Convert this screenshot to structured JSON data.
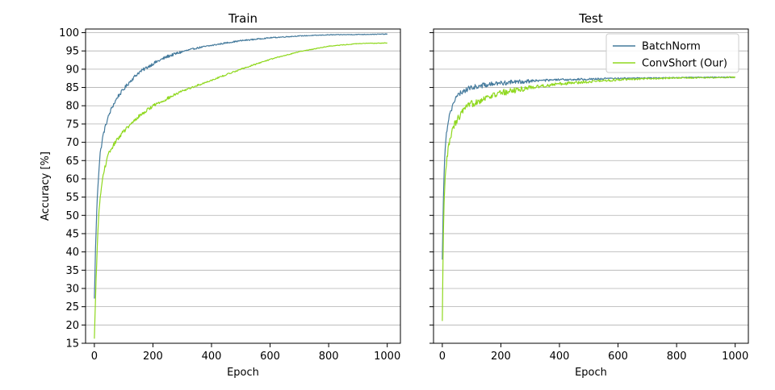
{
  "chart_data": [
    {
      "type": "line",
      "title": "Train",
      "xlabel": "Epoch",
      "ylabel": "Accuracy [%]",
      "xlim": [
        -30,
        1045
      ],
      "ylim": [
        15,
        101
      ],
      "xticks": [
        "0",
        "200",
        "400",
        "600",
        "800",
        "1000"
      ],
      "yticks": [
        "15",
        "20",
        "25",
        "30",
        "35",
        "40",
        "45",
        "50",
        "55",
        "60",
        "65",
        "70",
        "75",
        "80",
        "85",
        "90",
        "95",
        "100"
      ],
      "grid": "horizontal",
      "legend": "none",
      "series": [
        {
          "name": "BatchNorm",
          "color": "#447a9c",
          "x": [
            0,
            5,
            10,
            15,
            20,
            30,
            40,
            50,
            60,
            80,
            100,
            120,
            150,
            200,
            250,
            300,
            350,
            400,
            450,
            500,
            600,
            700,
            800,
            900,
            1000
          ],
          "y": [
            27,
            44,
            55,
            62,
            67,
            72,
            75,
            77.5,
            79.5,
            82.5,
            84.5,
            86.5,
            89,
            91.5,
            93.5,
            94.8,
            95.8,
            96.5,
            97.2,
            97.8,
            98.6,
            99.1,
            99.4,
            99.5,
            99.6
          ]
        },
        {
          "name": "ConvShort (Our)",
          "color": "#8fd81e",
          "x": [
            0,
            5,
            10,
            15,
            20,
            30,
            40,
            50,
            60,
            80,
            100,
            120,
            150,
            200,
            250,
            300,
            350,
            400,
            450,
            500,
            600,
            700,
            800,
            900,
            1000
          ],
          "y": [
            16,
            30,
            42,
            50,
            55,
            61,
            64.5,
            67,
            68.5,
            71,
            73,
            74.5,
            77,
            80,
            82,
            84,
            85.5,
            87,
            88.5,
            90,
            92.7,
            94.8,
            96.3,
            97,
            97.2
          ]
        }
      ]
    },
    {
      "type": "line",
      "title": "Test",
      "xlabel": "Epoch",
      "ylabel": "",
      "xlim": [
        -30,
        1045
      ],
      "ylim": [
        15,
        101
      ],
      "xticks": [
        "0",
        "200",
        "400",
        "600",
        "800",
        "1000"
      ],
      "yticks": [],
      "grid": "horizontal",
      "legend": "top-right",
      "series": [
        {
          "name": "BatchNorm",
          "color": "#447a9c",
          "x": [
            0,
            3,
            6,
            10,
            15,
            20,
            30,
            40,
            50,
            70,
            100,
            150,
            200,
            300,
            400,
            500,
            600,
            700,
            800,
            900,
            1000
          ],
          "y": [
            37.5,
            52,
            62,
            69,
            73,
            76,
            79,
            81,
            82.5,
            84,
            85,
            85.7,
            86.2,
            86.8,
            87.1,
            87.3,
            87.5,
            87.6,
            87.7,
            87.8,
            87.8
          ],
          "noise": 0.5
        },
        {
          "name": "ConvShort (Our)",
          "color": "#8fd81e",
          "x": [
            0,
            3,
            6,
            10,
            15,
            20,
            30,
            40,
            50,
            70,
            100,
            150,
            200,
            300,
            400,
            500,
            600,
            700,
            800,
            900,
            1000
          ],
          "y": [
            20.5,
            41,
            53,
            60,
            65,
            68,
            72,
            74.5,
            76,
            78.5,
            80.5,
            82.3,
            83.5,
            85,
            86,
            86.6,
            87.1,
            87.4,
            87.6,
            87.7,
            87.8
          ],
          "noise": 0.7
        }
      ]
    }
  ]
}
